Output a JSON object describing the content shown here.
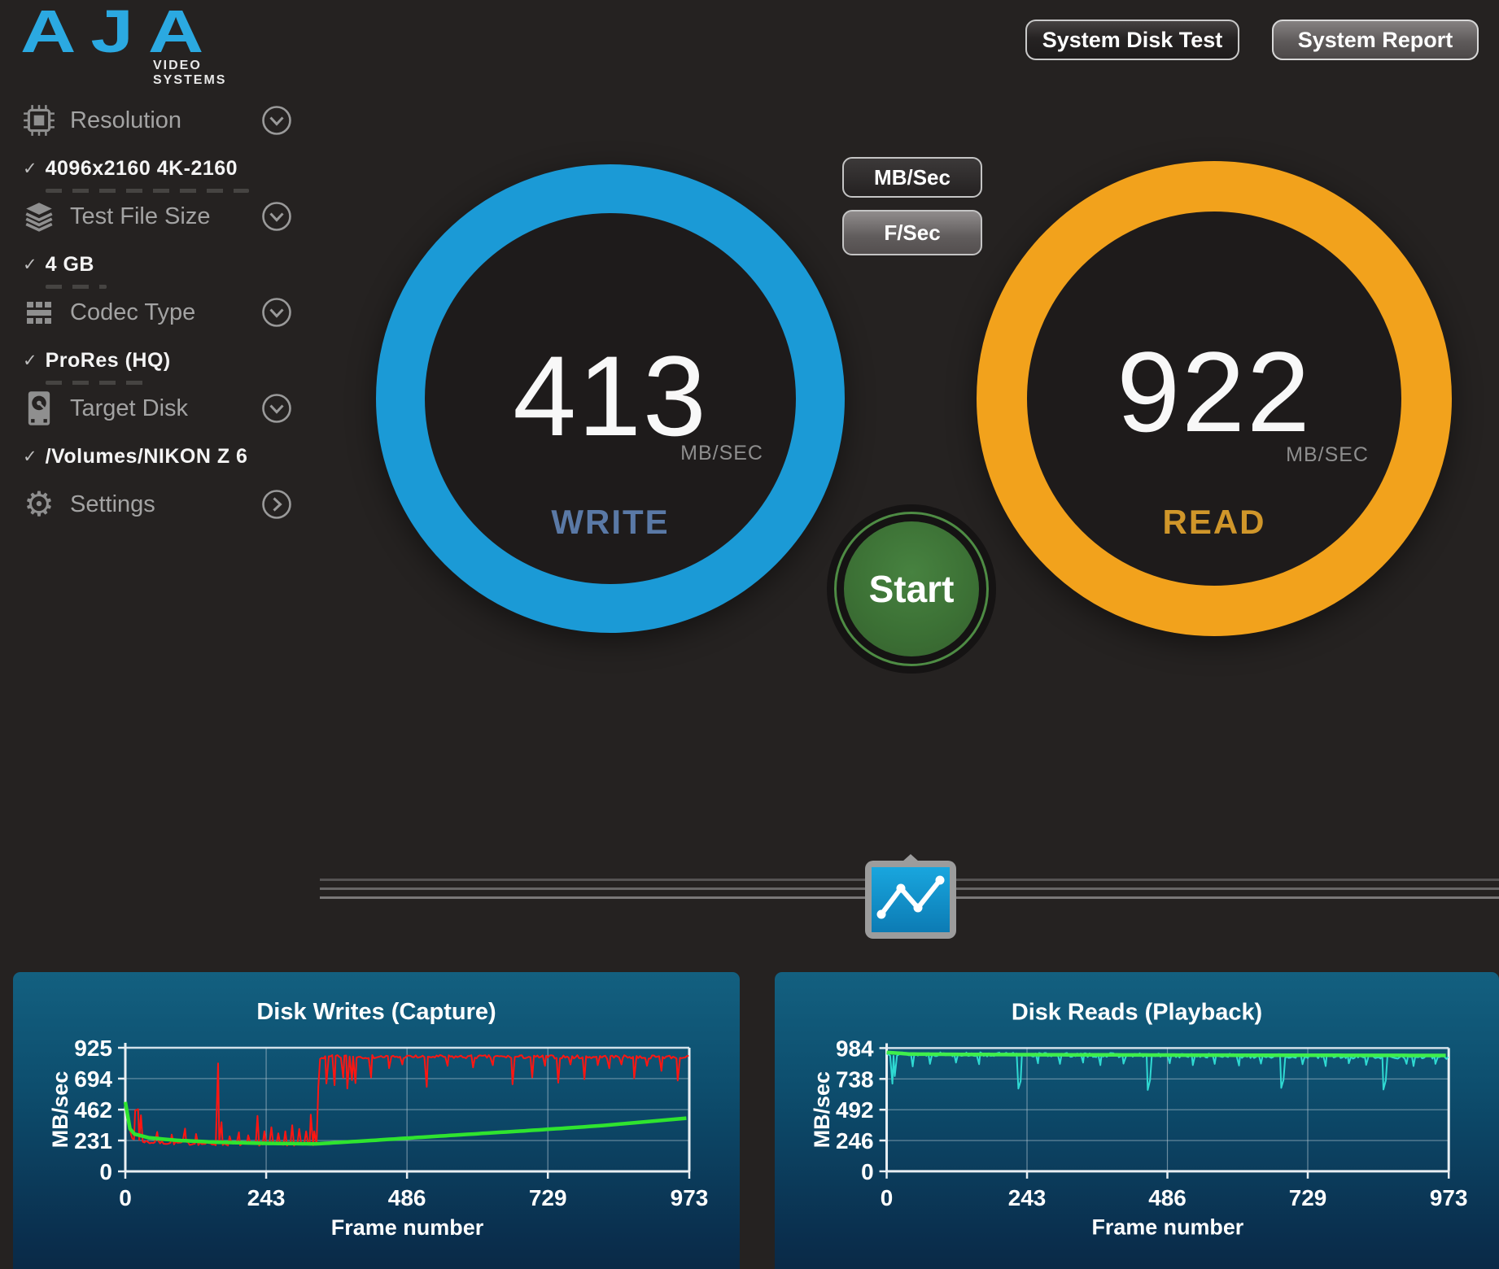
{
  "app": {
    "brand": "AJA",
    "brand_sub": "VIDEO SYSTEMS"
  },
  "header": {
    "buttons": [
      {
        "label": "System Disk Test"
      },
      {
        "label": "System Report"
      }
    ]
  },
  "sidebar": {
    "items": [
      {
        "label": "Resolution",
        "icon": "chip-icon",
        "value": "4096x2160 4K-2160"
      },
      {
        "label": "Test File Size",
        "icon": "layers-icon",
        "value": "4 GB"
      },
      {
        "label": "Codec Type",
        "icon": "grid-icon",
        "value": "ProRes (HQ)"
      },
      {
        "label": "Target Disk",
        "icon": "disk-icon",
        "value": "/Volumes/NIKON Z 6"
      },
      {
        "label": "Settings",
        "icon": "gear-icon"
      }
    ]
  },
  "gauges": {
    "unit_buttons": [
      {
        "label": "MB/Sec"
      },
      {
        "label": "F/Sec"
      }
    ],
    "write": {
      "value": "413",
      "unit": "MB/SEC",
      "label": "WRITE",
      "ring_color": "#1B9AD6",
      "label_color": "#5A79A6"
    },
    "read": {
      "value": "922",
      "unit": "MB/SEC",
      "label": "READ",
      "ring_color": "#F2A21C",
      "label_color": "#D0962A"
    },
    "start_label": "Start",
    "start_color": "#3F7A39"
  },
  "colors": {
    "aja_blue": "#2BA9E1",
    "background": "#252221",
    "panel_top": "#136080",
    "panel_bottom": "#092138",
    "write_series": "#FF1612",
    "read_series": "#2FD9D2",
    "average_series": "#2FE42F"
  },
  "chart_data": [
    {
      "type": "line",
      "title": "Disk Writes (Capture)",
      "xlabel": "Frame number",
      "ylabel": "MB/sec",
      "xlim": [
        0,
        973
      ],
      "ylim": [
        0,
        925
      ],
      "xticks": [
        0,
        243,
        486,
        729,
        973
      ],
      "yticks": [
        0,
        231,
        462,
        694,
        925
      ],
      "grid": true,
      "legend": "none",
      "series": [
        {
          "name": "write-rate-instantaneous",
          "color": "#ff1612",
          "width": 2,
          "style": "noisy",
          "noise": 13,
          "seed": 7,
          "anchors": [
            [
              0,
              530
            ],
            [
              5,
              340
            ],
            [
              12,
              245
            ],
            [
              40,
              218
            ],
            [
              150,
              205
            ],
            [
              331,
              205
            ],
            [
              334,
              850
            ],
            [
              360,
              858
            ],
            [
              973,
              856
            ]
          ],
          "spikes": [
            [
              17,
              455
            ],
            [
              22,
              465
            ],
            [
              27,
              420
            ],
            [
              55,
              295
            ],
            [
              80,
              275
            ],
            [
              103,
              320
            ],
            [
              122,
              280
            ],
            [
              160,
              808
            ],
            [
              166,
              368
            ],
            [
              180,
              262
            ],
            [
              196,
              292
            ],
            [
              212,
              270
            ],
            [
              228,
              415
            ],
            [
              240,
              300
            ],
            [
              252,
              330
            ],
            [
              264,
              285
            ],
            [
              276,
              300
            ],
            [
              288,
              345
            ],
            [
              300,
              318
            ],
            [
              312,
              300
            ],
            [
              320,
              425
            ],
            [
              326,
              300
            ],
            [
              347,
              658
            ],
            [
              361,
              645
            ],
            [
              376,
              700
            ],
            [
              383,
              620
            ],
            [
              391,
              682
            ],
            [
              397,
              660
            ],
            [
              424,
              703
            ],
            [
              455,
              772
            ],
            [
              478,
              800
            ],
            [
              520,
              632
            ],
            [
              556,
              790
            ],
            [
              600,
              778
            ],
            [
              634,
              795
            ],
            [
              668,
              652
            ],
            [
              702,
              703
            ],
            [
              724,
              790
            ],
            [
              747,
              664
            ],
            [
              768,
              800
            ],
            [
              792,
              690
            ],
            [
              815,
              795
            ],
            [
              835,
              772
            ],
            [
              856,
              800
            ],
            [
              878,
              696
            ],
            [
              900,
              790
            ],
            [
              925,
              752
            ],
            [
              953,
              680
            ]
          ]
        },
        {
          "name": "write-rate-average",
          "color": "#2fe42f",
          "width": 4.5,
          "style": "smooth",
          "noise": 0,
          "seed": 1,
          "anchors": [
            [
              0,
              520
            ],
            [
              6,
              330
            ],
            [
              15,
              280
            ],
            [
              40,
              252
            ],
            [
              90,
              232
            ],
            [
              160,
              218
            ],
            [
              240,
              210
            ],
            [
              330,
              206
            ],
            [
              420,
              230
            ],
            [
              520,
              258
            ],
            [
              620,
              285
            ],
            [
              720,
              312
            ],
            [
              820,
              342
            ],
            [
              900,
              372
            ],
            [
              973,
              400
            ]
          ]
        }
      ]
    },
    {
      "type": "line",
      "title": "Disk Reads (Playback)",
      "xlabel": "Frame number",
      "ylabel": "MB/sec",
      "xlim": [
        0,
        973
      ],
      "ylim": [
        0,
        984
      ],
      "xticks": [
        0,
        243,
        486,
        729,
        973
      ],
      "yticks": [
        0,
        246,
        492,
        738,
        984
      ],
      "grid": true,
      "legend": "none",
      "series": [
        {
          "name": "read-rate-instantaneous",
          "color": "#2fd9d2",
          "width": 2,
          "style": "noisy",
          "noise": 17,
          "seed": 13,
          "anchors": [
            [
              0,
              938
            ],
            [
              973,
              912
            ]
          ],
          "spikes": [
            [
              10,
              700
            ],
            [
              14,
              760
            ],
            [
              45,
              838
            ],
            [
              75,
              858
            ],
            [
              120,
              868
            ],
            [
              160,
              855
            ],
            [
              228,
              660
            ],
            [
              232,
              720
            ],
            [
              262,
              862
            ],
            [
              300,
              858
            ],
            [
              340,
              868
            ],
            [
              370,
              848
            ],
            [
              410,
              860
            ],
            [
              452,
              650
            ],
            [
              456,
              730
            ],
            [
              490,
              862
            ],
            [
              530,
              848
            ],
            [
              568,
              858
            ],
            [
              610,
              845
            ],
            [
              648,
              860
            ],
            [
              683,
              666
            ],
            [
              687,
              730
            ],
            [
              720,
              855
            ],
            [
              760,
              840
            ],
            [
              800,
              862
            ],
            [
              830,
              850
            ],
            [
              860,
              653
            ],
            [
              864,
              725
            ],
            [
              900,
              858
            ],
            [
              912,
              840
            ],
            [
              950,
              858
            ]
          ]
        },
        {
          "name": "read-rate-average",
          "color": "#3fee4c",
          "width": 4.5,
          "style": "smooth",
          "noise": 0,
          "seed": 2,
          "anchors": [
            [
              0,
              950
            ],
            [
              40,
              936
            ],
            [
              200,
              932
            ],
            [
              500,
              928
            ],
            [
              800,
              926
            ],
            [
              973,
              925
            ]
          ]
        }
      ]
    }
  ]
}
